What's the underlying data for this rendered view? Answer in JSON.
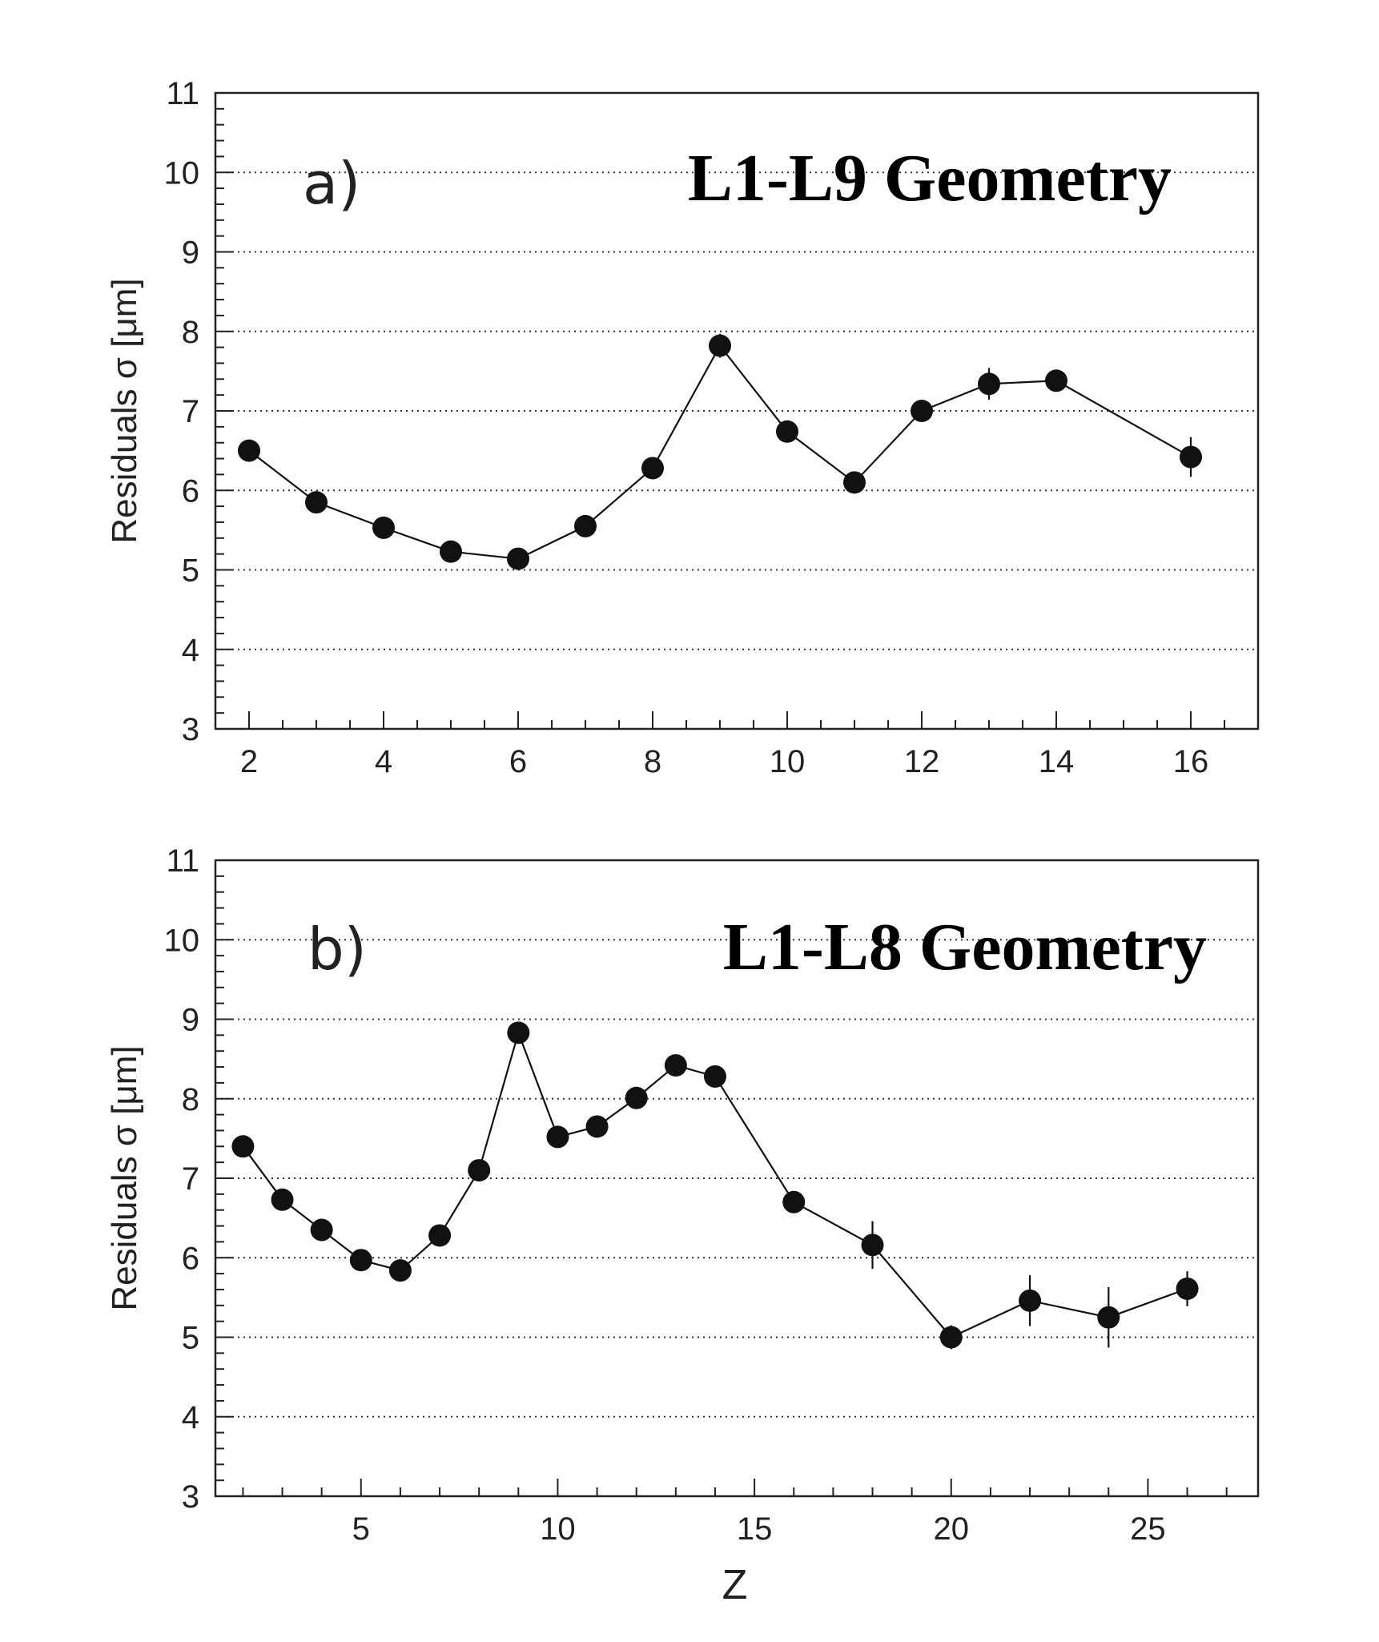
{
  "chart_data": [
    {
      "type": "scatter",
      "panel_label": "a)",
      "title": "L1-L9 Geometry",
      "xlabel": "",
      "ylabel": "Residuals σ [μm]",
      "xlim": [
        1.5,
        17
      ],
      "ylim": [
        3,
        11
      ],
      "x_ticks": [
        2,
        4,
        6,
        8,
        10,
        12,
        14,
        16
      ],
      "y_ticks": [
        3,
        4,
        5,
        6,
        7,
        8,
        9,
        10,
        11
      ],
      "grid": "horizontal dotted",
      "connected": true,
      "x": [
        2,
        3,
        4,
        5,
        6,
        7,
        8,
        9,
        10,
        11,
        12,
        13,
        14,
        16
      ],
      "y": [
        6.5,
        5.85,
        5.53,
        5.23,
        5.14,
        5.55,
        6.28,
        7.82,
        6.74,
        6.1,
        7.0,
        7.34,
        7.38,
        6.42
      ],
      "y_err": [
        0.05,
        0.05,
        0.05,
        0.05,
        0.05,
        0.05,
        0.05,
        0.15,
        0.1,
        0.1,
        0.1,
        0.2,
        0.1,
        0.25
      ]
    },
    {
      "type": "scatter",
      "panel_label": "b)",
      "title": "L1-L8 Geometry",
      "xlabel": "Z",
      "ylabel": "Residuals σ [μm]",
      "xlim": [
        1.3,
        27.8
      ],
      "ylim": [
        3,
        11
      ],
      "x_ticks": [
        5,
        10,
        15,
        20,
        25
      ],
      "y_ticks": [
        3,
        4,
        5,
        6,
        7,
        8,
        9,
        10,
        11
      ],
      "grid": "horizontal dotted",
      "connected": true,
      "x": [
        2,
        3,
        4,
        5,
        6,
        7,
        8,
        9,
        10,
        11,
        12,
        13,
        14,
        16,
        18,
        20,
        22,
        24,
        26
      ],
      "y": [
        7.4,
        6.73,
        6.35,
        5.97,
        5.84,
        6.28,
        7.1,
        8.83,
        7.52,
        7.65,
        8.01,
        8.42,
        8.28,
        6.7,
        6.16,
        5.0,
        5.46,
        5.25,
        5.61
      ],
      "y_err": [
        0.05,
        0.05,
        0.05,
        0.05,
        0.05,
        0.05,
        0.05,
        0.1,
        0.05,
        0.05,
        0.05,
        0.05,
        0.05,
        0.1,
        0.3,
        0.15,
        0.32,
        0.38,
        0.22
      ]
    }
  ]
}
